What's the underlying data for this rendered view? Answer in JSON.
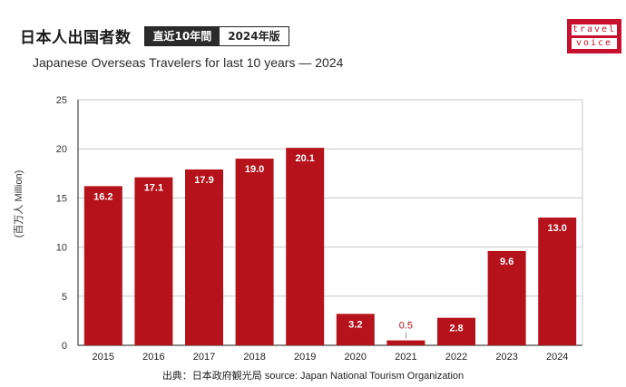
{
  "header": {
    "title_jp": "日本人出国者数",
    "badge_left": "直近10年間",
    "badge_right": "2024年版",
    "subtitle": "Japanese Overseas Travelers for last 10 years  —  2024"
  },
  "logo": {
    "line1": "travel",
    "line2": "voice",
    "color": "#c8102e"
  },
  "source_note": "出典：日本政府観光局  source: Japan National Tourism Organization",
  "chart_data": {
    "type": "bar",
    "title": "Japanese Overseas Travelers for last 10 years — 2024",
    "ylabel": "(百万人 Million)",
    "xlabel": "",
    "categories": [
      "2015",
      "2016",
      "2017",
      "2018",
      "2019",
      "2020",
      "2021",
      "2022",
      "2023",
      "2024"
    ],
    "values": [
      16.2,
      17.1,
      17.9,
      19.0,
      20.1,
      3.2,
      0.5,
      2.8,
      9.6,
      13.0
    ],
    "labels": [
      "16.2",
      "17.1",
      "17.9",
      "19.0",
      "20.1",
      "3.2",
      "0.5",
      "2.8",
      "9.6",
      "13.0"
    ],
    "ylim": [
      0,
      25
    ],
    "yticks": [
      0,
      5,
      10,
      15,
      20,
      25
    ],
    "grid": true,
    "bar_color": "#b5121b"
  }
}
